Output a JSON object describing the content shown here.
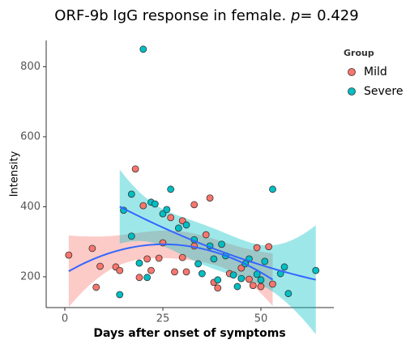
{
  "chart_data": {
    "type": "scatter",
    "title": "ORF-9b IgG response in female.",
    "stat_label": "p",
    "stat_text": "= 0.429",
    "x_label": "Days after onset of symptoms",
    "y_label": "Intensity",
    "legend_title": "Group",
    "legend": "right",
    "smooth": true,
    "grid": false,
    "xlim": [
      -4.75,
      68.6
    ],
    "ylim": [
      112,
      875
    ],
    "xticks": [
      0,
      25,
      50
    ],
    "yticks": [
      200,
      400,
      600,
      800
    ],
    "series": [
      {
        "name": "Mild",
        "color": "#F8766D",
        "band_color": "#F8766D",
        "x": [
          1,
          7,
          8,
          9,
          13,
          14,
          18,
          19,
          20,
          21,
          22,
          24,
          25,
          28,
          27,
          30,
          30,
          31,
          33,
          33,
          36,
          37,
          38,
          39,
          42,
          45,
          47,
          49,
          50,
          52,
          53,
          48
        ],
        "values": [
          262,
          281,
          170,
          230,
          228,
          218,
          508,
          198,
          403,
          251,
          218,
          253,
          297,
          214,
          369,
          360,
          255,
          214,
          288,
          406,
          320,
          425,
          184,
          168,
          209,
          225,
          193,
          283,
          172,
          286,
          179,
          175
        ]
      },
      {
        "name": "Severe",
        "color": "#00BFC4",
        "band_color": "#00BFC4",
        "x": [
          20,
          14,
          15,
          17,
          17,
          19,
          22,
          23,
          25,
          26,
          27,
          29,
          31,
          33,
          34,
          35,
          37,
          39,
          40,
          41,
          43,
          44,
          45,
          47,
          49,
          50,
          51,
          53,
          55,
          56,
          57,
          64,
          46,
          21,
          38
        ],
        "values": [
          850,
          149,
          390,
          436,
          316,
          239,
          413,
          408,
          380,
          392,
          450,
          339,
          348,
          306,
          237,
          209,
          288,
          191,
          293,
          260,
          205,
          172,
          195,
          251,
          207,
          191,
          244,
          450,
          209,
          228,
          152,
          218,
          237,
          198,
          251
        ]
      }
    ]
  }
}
